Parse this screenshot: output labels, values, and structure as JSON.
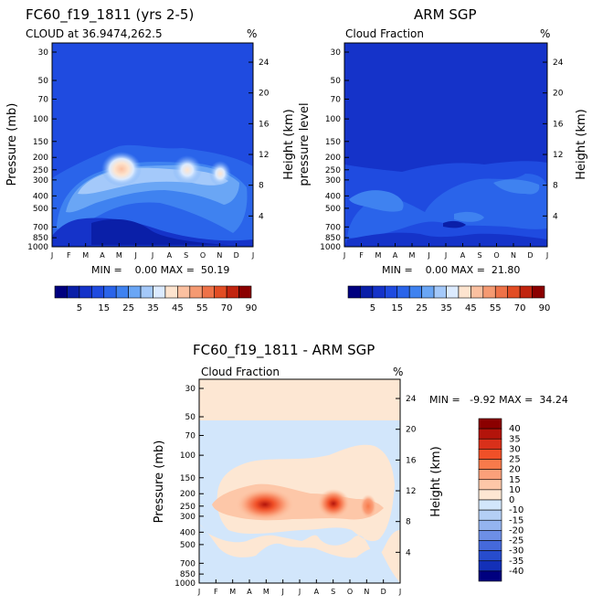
{
  "chart_data": [
    {
      "type": "heatmap",
      "id": "p1",
      "title": "FC60_f19_1811 (yrs 2-5)",
      "subtitle": "CLOUD at 36.9474,262.5",
      "unit": "%",
      "ylabel": "Pressure (mb)",
      "ylabel_right": "Height (km)",
      "stats": "MIN =    0.00 MAX =  50.19",
      "months": [
        "J",
        "F",
        "M",
        "A",
        "M",
        "J",
        "J",
        "A",
        "S",
        "O",
        "N",
        "D",
        "J"
      ],
      "pressure_ticks": [
        "30",
        "50",
        "70",
        "100",
        "150",
        "200",
        "250",
        "300",
        "400",
        "500",
        "700",
        "850",
        "1000"
      ],
      "height_ticks": [
        "24",
        "20",
        "16",
        "12",
        "8",
        "4"
      ],
      "colorbar_labels": [
        "5",
        "15",
        "25",
        "35",
        "45",
        "55",
        "70",
        "90"
      ],
      "max_value": 50.19
    },
    {
      "type": "heatmap",
      "id": "p2",
      "title": "ARM SGP",
      "subtitle": "Cloud Fraction",
      "unit": "%",
      "ylabel": "pressure level",
      "ylabel_right": "Height (km)",
      "stats": "MIN =    0.00 MAX =  21.80",
      "months": [
        "J",
        "F",
        "M",
        "A",
        "M",
        "J",
        "J",
        "A",
        "S",
        "O",
        "N",
        "D",
        "J"
      ],
      "pressure_ticks": [
        "30",
        "50",
        "70",
        "100",
        "150",
        "200",
        "250",
        "300",
        "400",
        "500",
        "700",
        "850",
        "1000"
      ],
      "height_ticks": [
        "24",
        "20",
        "16",
        "12",
        "8",
        "4"
      ],
      "colorbar_labels": [
        "5",
        "15",
        "25",
        "35",
        "45",
        "55",
        "70",
        "90"
      ],
      "max_value": 21.8
    },
    {
      "type": "heatmap",
      "id": "p3",
      "title": "FC60_f19_1811 - ARM SGP",
      "subtitle": "Cloud Fraction",
      "unit": "%",
      "ylabel": "Pressure (mb)",
      "ylabel_right": "Height (km)",
      "stats": "MIN =   -9.92 MAX =  34.24",
      "months": [
        "J",
        "F",
        "M",
        "A",
        "M",
        "J",
        "J",
        "A",
        "S",
        "O",
        "N",
        "D",
        "J"
      ],
      "pressure_ticks": [
        "30",
        "50",
        "70",
        "100",
        "150",
        "200",
        "250",
        "300",
        "400",
        "500",
        "700",
        "850",
        "1000"
      ],
      "height_ticks": [
        "24",
        "20",
        "16",
        "12",
        "8",
        "4"
      ],
      "colorbar_labels": [
        "40",
        "35",
        "30",
        "25",
        "20",
        "15",
        "10",
        "0",
        "-10",
        "-15",
        "-20",
        "-25",
        "-30",
        "-35",
        "-40"
      ],
      "min_value": -9.92,
      "max_value": 34.24
    }
  ],
  "colors": {
    "abs_scale": [
      "#00007f",
      "#0a1fa8",
      "#1533c9",
      "#1f4be0",
      "#2a64ea",
      "#3f82f0",
      "#6aa6f5",
      "#a4c9fa",
      "#dcebff",
      "#fde4cf",
      "#fbc0a0",
      "#f59a72",
      "#ee7248",
      "#e24d24",
      "#c1240f",
      "#8b0000"
    ],
    "diff_scale": [
      "#8b0000",
      "#b3140b",
      "#d9301a",
      "#f05028",
      "#f87a4b",
      "#fba07a",
      "#fdc7a8",
      "#fde7d3",
      "#d2e6fb",
      "#b4cff5",
      "#94b4ef",
      "#6d8fe6",
      "#4569db",
      "#274ccd",
      "#1330b8",
      "#00007f"
    ]
  }
}
